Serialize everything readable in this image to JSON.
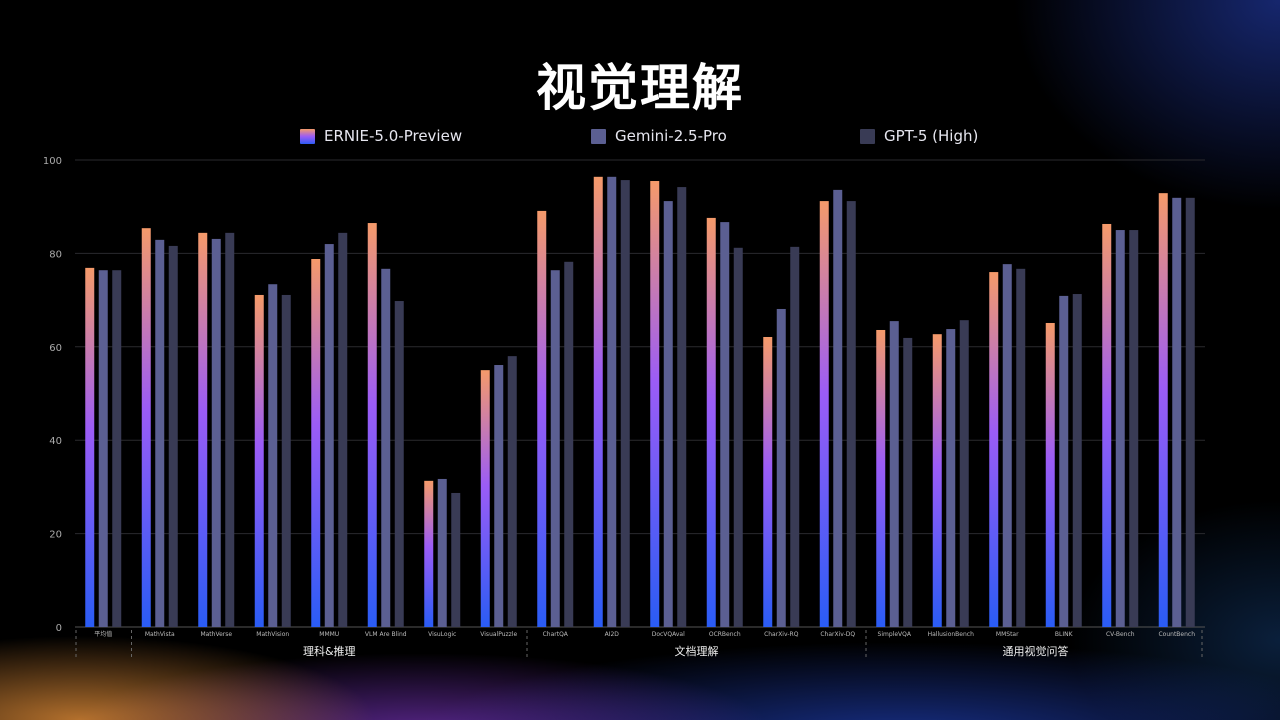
{
  "title": "视觉理解",
  "chart_data": {
    "type": "bar",
    "title": "视觉理解",
    "xlabel": "",
    "ylabel": "",
    "ylim": [
      0,
      100
    ],
    "yticks": [
      0,
      20,
      40,
      60,
      80,
      100
    ],
    "grid": true,
    "legend_position": "top-center",
    "categories": [
      "平均值",
      "MathVista",
      "MathVerse",
      "MathVision",
      "MMMU",
      "VLM Are Blind",
      "VisuLogic",
      "VisualPuzzle",
      "ChartQA",
      "AI2D",
      "DocVQAval",
      "OCRBench",
      "CharXiv-RQ",
      "CharXiv-DQ",
      "SimpleVQA",
      "HallusionBench",
      "MMStar",
      "BLINK",
      "CV-Bench",
      "CountBench"
    ],
    "groups": [
      {
        "label": "理科&推理",
        "start": 1,
        "end": 7
      },
      {
        "label": "文档理解",
        "start": 8,
        "end": 13
      },
      {
        "label": "通用视觉问答",
        "start": 14,
        "end": 19
      }
    ],
    "series": [
      {
        "name": "ERNIE-5.0-Preview",
        "color": "#f29a6c",
        "values": [
          76.9,
          85.4,
          84.4,
          71.1,
          78.8,
          86.5,
          31.3,
          55.0,
          89.1,
          96.4,
          95.5,
          87.6,
          62.1,
          91.2,
          63.6,
          62.7,
          76.0,
          65.1,
          86.3,
          92.9
        ]
      },
      {
        "name": "Gemini-2.5-Pro",
        "color": "#5b5f92",
        "values": [
          76.4,
          82.9,
          83.1,
          73.4,
          82.0,
          76.7,
          31.7,
          56.1,
          76.4,
          96.4,
          91.2,
          86.7,
          68.1,
          93.6,
          65.5,
          63.8,
          77.7,
          70.9,
          85.0,
          91.9
        ]
      },
      {
        "name": "GPT-5 (High)",
        "color": "#393b55",
        "values": [
          76.4,
          81.6,
          84.4,
          71.1,
          84.4,
          69.8,
          28.7,
          58.0,
          78.2,
          95.7,
          94.2,
          81.2,
          81.4,
          91.2,
          61.9,
          65.7,
          76.7,
          71.3,
          85.0,
          91.9
        ]
      }
    ]
  }
}
